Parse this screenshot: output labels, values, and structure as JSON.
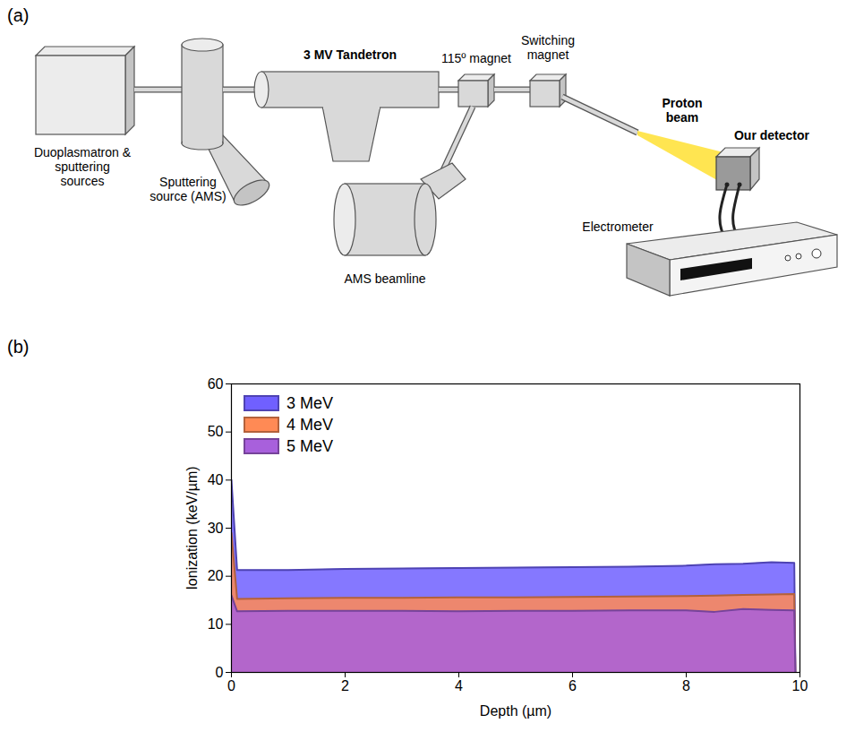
{
  "diagram": {
    "label": "(a)",
    "nodes": [
      {
        "label": "Duoplasmatron & sputtering sources"
      },
      {
        "label": "Sputtering source (AMS)"
      },
      {
        "label": "3 MV Tandetron"
      },
      {
        "label": "115º magnet"
      },
      {
        "label": "Switching magnet"
      },
      {
        "label": "AMS beamline"
      },
      {
        "label": "Proton beam"
      },
      {
        "label": "Our detector"
      },
      {
        "label": "Electrometer"
      }
    ]
  },
  "chart_data": {
    "type": "area",
    "label": "(b)",
    "x_label": "Depth (µm)",
    "y_label": "Ionization (keV/µm)",
    "x": [
      0,
      0.1,
      1,
      2,
      3,
      4,
      5,
      6,
      7,
      8,
      8.5,
      9,
      9.5,
      9.9,
      9.92
    ],
    "series": [
      {
        "name": "3 MeV",
        "color": "#7060ff",
        "values": [
          40,
          21.3,
          21.3,
          21.5,
          21.6,
          21.7,
          21.8,
          21.9,
          22.0,
          22.2,
          22.5,
          22.6,
          22.9,
          22.8,
          0
        ]
      },
      {
        "name": "4 MeV",
        "color": "#ff8a55",
        "values": [
          29,
          15.3,
          15.4,
          15.5,
          15.5,
          15.6,
          15.6,
          15.7,
          15.8,
          15.9,
          16.0,
          16.1,
          16.2,
          16.3,
          0
        ]
      },
      {
        "name": "5 MeV",
        "color": "#a860dc",
        "values": [
          16,
          12.7,
          12.8,
          12.8,
          12.8,
          12.7,
          12.8,
          12.8,
          12.9,
          12.9,
          12.6,
          13.2,
          13.0,
          12.9,
          0
        ]
      }
    ],
    "xlim": [
      0,
      10
    ],
    "xticks": [
      0,
      2,
      4,
      6,
      8,
      10
    ],
    "ylim": [
      0,
      60
    ],
    "yticks": [
      0,
      10,
      20,
      30,
      40,
      50,
      60
    ],
    "legend": "top-left",
    "grid": false
  }
}
